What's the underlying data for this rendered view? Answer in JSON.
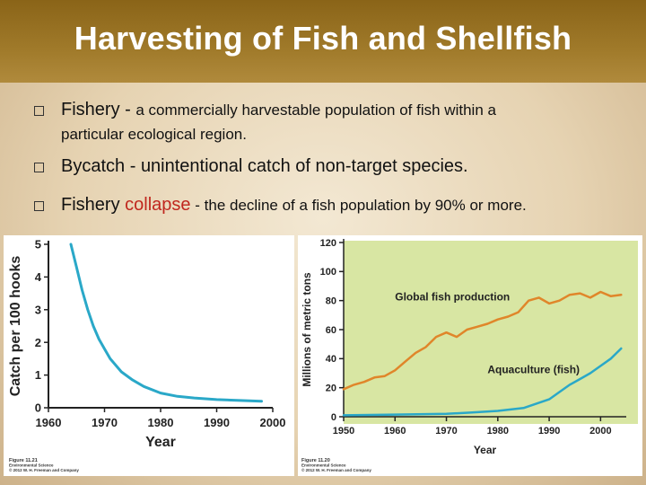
{
  "slide": {
    "title": "Harvesting of Fish and Shellfish",
    "bullets": [
      {
        "term": "Fishery",
        "sep": " - ",
        "def_line1": "a commercially harvestable population of fish within a",
        "def_line2": "particular ecological region."
      },
      {
        "term": "Bycatch",
        "sep": " - ",
        "def": "unintentional catch of non-target species."
      },
      {
        "term": "Fishery",
        "highlight": "collapse",
        "sep": " - ",
        "def": "the decline of a fish population by 90% or more."
      }
    ]
  },
  "chart_data": [
    {
      "type": "line",
      "title": "",
      "xlabel": "Year",
      "ylabel": "Catch per 100 hooks",
      "xlim": [
        1960,
        2000
      ],
      "ylim": [
        0,
        5
      ],
      "xticks": [
        1960,
        1970,
        1980,
        1990,
        2000
      ],
      "yticks": [
        0,
        1,
        2,
        3,
        4,
        5
      ],
      "grid": false,
      "series": [
        {
          "color": "#2aa8c8",
          "x": [
            1964,
            1965,
            1966,
            1967,
            1968,
            1969,
            1970,
            1971,
            1973,
            1975,
            1977,
            1980,
            1983,
            1986,
            1990,
            1998
          ],
          "y": [
            5.0,
            4.3,
            3.6,
            3.0,
            2.5,
            2.1,
            1.8,
            1.5,
            1.1,
            0.85,
            0.65,
            0.45,
            0.35,
            0.3,
            0.25,
            0.2
          ]
        }
      ],
      "caption_lines": [
        "Figure 11.21",
        "Environmental Science",
        "© 2012 W. H. Freeman and Company"
      ]
    },
    {
      "type": "line",
      "title": "",
      "xlabel": "Year",
      "ylabel": "Millions of metric tons",
      "xlim": [
        1950,
        2005
      ],
      "ylim": [
        0,
        120
      ],
      "xticks": [
        1950,
        1960,
        1970,
        1980,
        1990,
        2000
      ],
      "yticks": [
        0,
        20,
        40,
        60,
        80,
        100,
        120
      ],
      "grid": false,
      "background": "#d8e6a3",
      "series": [
        {
          "name": "Global fish production",
          "color": "#e0862a",
          "x": [
            1950,
            1952,
            1954,
            1956,
            1958,
            1960,
            1962,
            1964,
            1966,
            1968,
            1970,
            1972,
            1974,
            1976,
            1978,
            1980,
            1982,
            1984,
            1986,
            1988,
            1990,
            1992,
            1994,
            1996,
            1998,
            2000,
            2002,
            2004
          ],
          "y": [
            19,
            22,
            24,
            27,
            28,
            32,
            38,
            44,
            48,
            55,
            58,
            55,
            60,
            62,
            64,
            67,
            69,
            72,
            80,
            82,
            78,
            80,
            84,
            85,
            82,
            86,
            83,
            84
          ]
        },
        {
          "name": "Aquaculture (fish)",
          "color": "#2aa8c8",
          "x": [
            1950,
            1960,
            1970,
            1975,
            1980,
            1985,
            1990,
            1992,
            1994,
            1996,
            1998,
            2000,
            2002,
            2004
          ],
          "y": [
            1,
            1.5,
            2,
            3,
            4,
            6,
            12,
            17,
            22,
            26,
            30,
            35,
            40,
            47
          ]
        }
      ],
      "caption_lines": [
        "Figure 11.20",
        "Environmental Science",
        "© 2012 W. H. Freeman and Company"
      ]
    }
  ]
}
